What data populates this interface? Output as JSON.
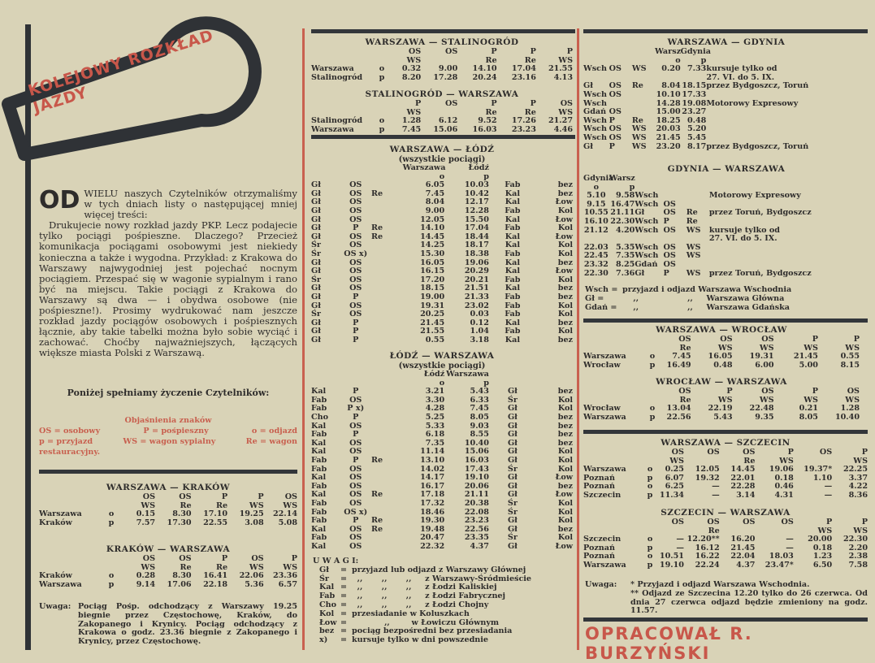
{
  "colors": {
    "paper": "#d9d3b7",
    "ink": "#2e2c2b",
    "accent_red": "#c8574a"
  },
  "masthead": {
    "title": "KOLEJOWY ROZKŁAD JAZDY",
    "icon": "railway-signal-icon"
  },
  "intro": {
    "dropcap": "OD",
    "lead": "WIELU naszych Czytelników otrzymaliśmy w tych dniach listy o następującej mniej więcej treści:",
    "body": "Drukujecie nowy rozkład jazdy PKP. Lecz podajecie tylko pociągi pośpieszne. Dlaczego? Przecież komunikacja pociągami osobowymi jest niekiedy konieczna a także i wygodna. Przykład: z Krakowa do Warszawy najwygodniej jest pojechać nocnym pociągiem. Przespać się w wagonie sypialnym i rano być na miejscu. Takie pociągi z Krakowa do Warszawy są dwa — i obydwa osobowe (nie pośpieszne!). Prosimy wydrukować nam jeszcze rozkład jazdy pociągów osobowych i pośpiesznych łącznie, aby takie tabelki można było sobie wyciąć i zachować. Choćby najważniejszych, łączących większe miasta Polski z Warszawą.",
    "heading": "Poniżej spełniamy życzenie Czytelników:"
  },
  "legend": {
    "title": "Objaśnienia znaków",
    "line1": [
      "OS = osobowy",
      "P = pośpieszny",
      "o = odjazd"
    ],
    "line2": [
      "p = przyjazd",
      "WS = wagon sypialny",
      "Re = wagon"
    ],
    "line3": "restauracyjny."
  },
  "left": {
    "krakow": {
      "title": "WARSZAWA — KRAKÓW",
      "rows": [
        [
          "",
          "",
          "OS",
          "OS",
          "P",
          "P",
          "OS"
        ],
        [
          "",
          "",
          "WS",
          "Re",
          "Re",
          "WS",
          "WS"
        ],
        [
          "Warszawa",
          "o",
          "0.15",
          "8.30",
          "17.10",
          "19.25",
          "22.14"
        ],
        [
          "Kraków",
          "p",
          "7.57",
          "17.30",
          "22.55",
          "3.08",
          "5.08"
        ]
      ]
    },
    "krakow_back": {
      "title": "KRAKÓW — WARSZAWA",
      "rows": [
        [
          "",
          "",
          "OS",
          "OS",
          "P",
          "OS",
          "P"
        ],
        [
          "",
          "",
          "WS",
          "Re",
          "Re",
          "WS",
          "WS"
        ],
        [
          "Kraków",
          "o",
          "0.28",
          "8.30",
          "16.41",
          "22.06",
          "23.36"
        ],
        [
          "Warszawa",
          "p",
          "9.14",
          "17.06",
          "22.18",
          "5.36",
          "6.57"
        ]
      ]
    },
    "note_label": "Uwaga:",
    "note": "Pociąg Pośp. odchodzący z Warszawy 19.25 biegnie przez Częstochowę, Kraków, do Zakopanego i Krynicy. Pociąg odchodzący z Krakowa o godz. 23.36 biegnie z Zakopanego i Krynicy, przez Częstochowę."
  },
  "middle": {
    "stalinograd": {
      "title": "WARSZAWA — STALINOGRÓD",
      "rows": [
        [
          "",
          "",
          "OS",
          "OS",
          "P",
          "P",
          "P"
        ],
        [
          "",
          "",
          "WS",
          "",
          "Re",
          "Re",
          "WS"
        ],
        [
          "Warszawa",
          "o",
          "0.32",
          "9.00",
          "14.10",
          "17.04",
          "21.55"
        ],
        [
          "Stalinogród",
          "p",
          "8.20",
          "17.28",
          "20.24",
          "23.16",
          "4.13"
        ]
      ]
    },
    "stalinograd_back": {
      "title": "STALINOGRÓD — WARSZAWA",
      "rows": [
        [
          "",
          "",
          "P",
          "OS",
          "P",
          "P",
          "OS"
        ],
        [
          "",
          "",
          "WS",
          "",
          "Re",
          "Re",
          "WS"
        ],
        [
          "Stalinogród",
          "o",
          "1.28",
          "6.12",
          "9.52",
          "17.26",
          "21.27"
        ],
        [
          "Warszawa",
          "p",
          "7.45",
          "15.06",
          "16.03",
          "23.23",
          "4.46"
        ]
      ]
    },
    "lodz": {
      "title": "WARSZAWA — ŁÓDŹ",
      "subtitle": "(wszystkie pociągi)",
      "rows": [
        [
          "",
          "",
          "",
          "Warszawa",
          "Łódź",
          "",
          ""
        ],
        [
          "",
          "",
          "",
          "o",
          "p",
          "",
          ""
        ],
        [
          "Gł",
          "OS",
          "",
          "6.05",
          "10.03",
          "Fab",
          "bez"
        ],
        [
          "Gł",
          "OS",
          "Re",
          "7.45",
          "10.42",
          "Kal",
          "bez"
        ],
        [
          "Gł",
          "OS",
          "",
          "8.04",
          "12.17",
          "Kal",
          "Łow"
        ],
        [
          "Gł",
          "OS",
          "",
          "9.00",
          "12.28",
          "Fab",
          "Kol"
        ],
        [
          "Gł",
          "OS",
          "",
          "12.05",
          "15.50",
          "Kal",
          "Łow"
        ],
        [
          "Gł",
          "P",
          "Re",
          "14.10",
          "17.04",
          "Fab",
          "Kol"
        ],
        [
          "Gł",
          "OS",
          "Re",
          "14.45",
          "18.44",
          "Kal",
          "Łow"
        ],
        [
          "Śr",
          "OS",
          "",
          "14.25",
          "18.17",
          "Kal",
          "Kol"
        ],
        [
          "Śr",
          "OS x)",
          "",
          "15.30",
          "18.38",
          "Fab",
          "Kol"
        ],
        [
          "Gł",
          "OS",
          "",
          "16.05",
          "19.06",
          "Kal",
          "bez"
        ],
        [
          "Gł",
          "OS",
          "",
          "16.15",
          "20.29",
          "Kal",
          "Łow"
        ],
        [
          "Śr",
          "OS",
          "",
          "17.20",
          "20.21",
          "Fab",
          "Kol"
        ],
        [
          "Gł",
          "OS",
          "",
          "18.15",
          "21.51",
          "Kal",
          "bez"
        ],
        [
          "Gł",
          "P",
          "",
          "19.00",
          "21.33",
          "Fab",
          "bez"
        ],
        [
          "Gł",
          "OS",
          "",
          "19.31",
          "23.02",
          "Fab",
          "Kol"
        ],
        [
          "Śr",
          "OS",
          "",
          "20.25",
          "0.03",
          "Fab",
          "Kol"
        ],
        [
          "Gł",
          "P",
          "",
          "21.45",
          "0.12",
          "Kal",
          "bez"
        ],
        [
          "Gł",
          "P",
          "",
          "21.55",
          "1.04",
          "Fab",
          "Kol"
        ],
        [
          "Gł",
          "P",
          "",
          "0.55",
          "3.18",
          "Kal",
          "bez"
        ]
      ]
    },
    "lodz_back": {
      "title": "ŁÓDŹ — WARSZAWA",
      "subtitle": "(wszystkie pociągi)",
      "rows": [
        [
          "",
          "",
          "",
          "Łódź",
          "Warszawa",
          "",
          ""
        ],
        [
          "",
          "",
          "",
          "o",
          "p",
          "",
          ""
        ],
        [
          "Kal",
          "P",
          "",
          "3.21",
          "5.43",
          "Gł",
          "bez"
        ],
        [
          "Fab",
          "OS",
          "",
          "3.30",
          "6.33",
          "Śr",
          "Kol"
        ],
        [
          "Fab",
          "P x)",
          "",
          "4.28",
          "7.45",
          "Gł",
          "Kol"
        ],
        [
          "Cho",
          "P",
          "",
          "5.25",
          "8.05",
          "Gł",
          "bez"
        ],
        [
          "Kal",
          "OS",
          "",
          "5.33",
          "9.03",
          "Gł",
          "bez"
        ],
        [
          "Fab",
          "P",
          "",
          "6.18",
          "8.55",
          "Gł",
          "bez"
        ],
        [
          "Kal",
          "OS",
          "",
          "7.35",
          "10.40",
          "Gł",
          "bez"
        ],
        [
          "Kal",
          "OS",
          "",
          "11.14",
          "15.06",
          "Gł",
          "Kol"
        ],
        [
          "Fab",
          "P",
          "Re",
          "13.10",
          "16.03",
          "Gł",
          "Kol"
        ],
        [
          "Fab",
          "OS",
          "",
          "14.02",
          "17.43",
          "Śr",
          "Kol"
        ],
        [
          "Kal",
          "OS",
          "",
          "14.17",
          "19.10",
          "Gł",
          "Łow"
        ],
        [
          "Fab",
          "OS",
          "",
          "16.17",
          "20.06",
          "Gł",
          "bez"
        ],
        [
          "Kal",
          "OS",
          "Re",
          "17.18",
          "21.11",
          "Gł",
          "Łow"
        ],
        [
          "Fab",
          "OS",
          "",
          "17.32",
          "20.38",
          "Śr",
          "Kol"
        ],
        [
          "Fab",
          "OS x)",
          "",
          "18.46",
          "22.08",
          "Śr",
          "Kol"
        ],
        [
          "Fab",
          "P",
          "Re",
          "19.30",
          "23.23",
          "Gł",
          "Kol"
        ],
        [
          "Kal",
          "OS",
          "Re",
          "19.48",
          "22.56",
          "Gł",
          "bez"
        ],
        [
          "Fab",
          "OS",
          "",
          "20.47",
          "23.35",
          "Śr",
          "Kol"
        ],
        [
          "Kal",
          "OS",
          "",
          "22.32",
          "4.37",
          "Gł",
          "Łow"
        ]
      ]
    },
    "uwagi": {
      "title": "U W A G I:",
      "rows": [
        [
          "Gł",
          "=",
          "przyjazd lub odjazd z Warszawy Głównej"
        ],
        [
          "Śr",
          "=",
          "  ,,       ,,       ,,     z Warszawy-Śródmieście"
        ],
        [
          "Kal",
          "=",
          "  ,,       ,,       ,,     z Łodzi Kaliskiej"
        ],
        [
          "Fab",
          "=",
          "  ,,       ,,       ,,     z Łodzi Fabrycznej"
        ],
        [
          "Cho",
          "=",
          "  ,,       ,,       ,,     z Łodzi Chojny"
        ],
        [
          "Kol",
          "=",
          "przesiadanie w Koluszkach"
        ],
        [
          "Łow",
          "=",
          "            ,,        w Łowiczu Głównym"
        ],
        [
          "bez",
          "=",
          "pociąg bezpośredni bez przesiadania"
        ],
        [
          "x)",
          "=",
          "kursuje tylko w dni powszednie"
        ]
      ]
    }
  },
  "right": {
    "gdynia": {
      "title": "WARSZAWA — GDYNIA",
      "rows": [
        [
          "",
          "",
          "",
          "Warsz",
          "Gdynia",
          ""
        ],
        [
          "",
          "",
          "",
          "o",
          "p",
          ""
        ],
        [
          "Wsch",
          "OS",
          "WS",
          "0.20",
          "7.33",
          "kursuje tylko od"
        ],
        [
          "",
          "",
          "",
          "",
          "",
          "27. VI. do 5. IX."
        ],
        [
          "Gł",
          "OS",
          "Re",
          "8.04",
          "18.15",
          "przez Bydgoszcz, Toruń"
        ],
        [
          "Wsch",
          "OS",
          "",
          "10.10",
          "17.33",
          ""
        ],
        [
          "Wsch",
          "",
          "",
          "14.28",
          "19.08",
          "Motorowy Expresowy"
        ],
        [
          "Gdań",
          "OS",
          "",
          "15.00",
          "23.27",
          ""
        ],
        [
          "Wsch",
          "P",
          "Re",
          "18.25",
          "0.48",
          ""
        ],
        [
          "Wsch",
          "OS",
          "WS",
          "20.03",
          "5.20",
          ""
        ],
        [
          "Wsch",
          "OS",
          "WS",
          "21.45",
          "5.45",
          ""
        ],
        [
          "Gł",
          "P",
          "WS",
          "23.20",
          "8.17",
          "przez Bydgoszcz, Toruń"
        ]
      ]
    },
    "gdynia_back": {
      "title": "GDYNIA — WARSZAWA",
      "rows": [
        [
          "Gdynia",
          "Warsz",
          "",
          "",
          "",
          ""
        ],
        [
          "o",
          "p",
          "",
          "",
          "",
          ""
        ],
        [
          "5.10",
          "9.58",
          "Wsch",
          "",
          "",
          "Motorowy Expresowy"
        ],
        [
          "9.15",
          "16.47",
          "Wsch",
          "OS",
          "",
          ""
        ],
        [
          "10.55",
          "21.11",
          "Gł",
          "OS",
          "Re",
          "przez Toruń, Bydgoszcz"
        ],
        [
          "16.10",
          "22.30",
          "Wsch",
          "P",
          "Re",
          ""
        ],
        [
          "21.12",
          "4.20",
          "Wsch",
          "OS",
          "WS",
          "kursuje tylko od"
        ],
        [
          "",
          "",
          "",
          "",
          "",
          "27. VI. do 5. IX."
        ],
        [
          "22.03",
          "5.35",
          "Wsch",
          "OS",
          "WS",
          ""
        ],
        [
          "22.45",
          "7.35",
          "Wsch",
          "OS",
          "WS",
          ""
        ],
        [
          "23.32",
          "8.25",
          "Gdań",
          "OS",
          "",
          ""
        ],
        [
          "22.30",
          "7.36",
          "Gł",
          "P",
          "WS",
          "przez Toruń, Bydgoszcz"
        ]
      ]
    },
    "gdynia_legend": [
      [
        "Wsch =",
        "przyjazd i odjazd Warszawa Wschodnia"
      ],
      [
        "Gł      =",
        "    ,,                  ,,     Warszawa Główna"
      ],
      [
        "Gdań =",
        "    ,,                  ,,     Warszawa Gdańska"
      ]
    ],
    "wroclaw": {
      "title": "WARSZAWA — WROCŁAW",
      "rows": [
        [
          "",
          "",
          "OS",
          "OS",
          "OS",
          "P",
          "P"
        ],
        [
          "",
          "",
          "Re",
          "WS",
          "WS",
          "WS",
          "WS"
        ],
        [
          "Warszawa",
          "o",
          "7.45",
          "16.05",
          "19.31",
          "21.45",
          "0.55"
        ],
        [
          "Wrocław",
          "p",
          "16.49",
          "0.48",
          "6.00",
          "5.00",
          "8.15"
        ]
      ]
    },
    "wroclaw_back": {
      "title": "WROCŁAW — WARSZAWA",
      "rows": [
        [
          "",
          "",
          "OS",
          "P",
          "OS",
          "P",
          "OS"
        ],
        [
          "",
          "",
          "Re",
          "WS",
          "WS",
          "WS",
          "WS"
        ],
        [
          "Wrocław",
          "o",
          "13.04",
          "22.19",
          "22.48",
          "0.21",
          "1.28"
        ],
        [
          "Warszawa",
          "p",
          "22.56",
          "5.43",
          "9.35",
          "8.05",
          "10.40"
        ]
      ]
    },
    "szczecin": {
      "title": "WARSZAWA — SZCZECIN",
      "rows": [
        [
          "",
          "",
          "OS",
          "OS",
          "OS",
          "P",
          "OS",
          "P"
        ],
        [
          "",
          "",
          "WS",
          "",
          "Re",
          "WS",
          "",
          "WS"
        ],
        [
          "Warszawa",
          "o",
          "0.25",
          "12.05",
          "14.45",
          "19.06",
          "19.37*",
          "22.25"
        ],
        [
          "Poznań",
          "p",
          "6.07",
          "19.32",
          "22.01",
          "0.18",
          "1.10",
          "3.37"
        ],
        [
          "Poznań",
          "o",
          "6.25",
          "—",
          "22.28",
          "0.46",
          "—",
          "4.22"
        ],
        [
          "Szczecin",
          "p",
          "11.34",
          "—",
          "3.14",
          "4.31",
          "—",
          "8.36"
        ]
      ]
    },
    "szczecin_back": {
      "title": "SZCZECIN — WARSZAWA",
      "rows": [
        [
          "",
          "",
          "OS",
          "OS",
          "OS",
          "OS",
          "P",
          "P"
        ],
        [
          "",
          "",
          "",
          "Re",
          "",
          "",
          "WS",
          "WS"
        ],
        [
          "Szczecin",
          "o",
          "—",
          "12.20**",
          "16.20",
          "—",
          "20.00",
          "22.30"
        ],
        [
          "Poznań",
          "p",
          "—",
          "16.12",
          "21.45",
          "—",
          "0.18",
          "2.20"
        ],
        [
          "Poznań",
          "o",
          "10.51",
          "16.22",
          "22.04",
          "18.03",
          "1.23",
          "2.38"
        ],
        [
          "Warszawa",
          "p",
          "19.10",
          "22.24",
          "4.37",
          "23.47*",
          "6.50",
          "7.58"
        ]
      ]
    },
    "note_label": "Uwaga:",
    "note1": "* Przyjazd i odjazd Warszawa Wschodnia.",
    "note2": "** Odjazd ze Szczecina 12.20 tylko do 26 czerwca. Od dnia 27 czerwca odjazd będzie zmieniony na godz. 11.57.",
    "author": "OPRACOWAŁ R. BURZYŃSKI"
  }
}
